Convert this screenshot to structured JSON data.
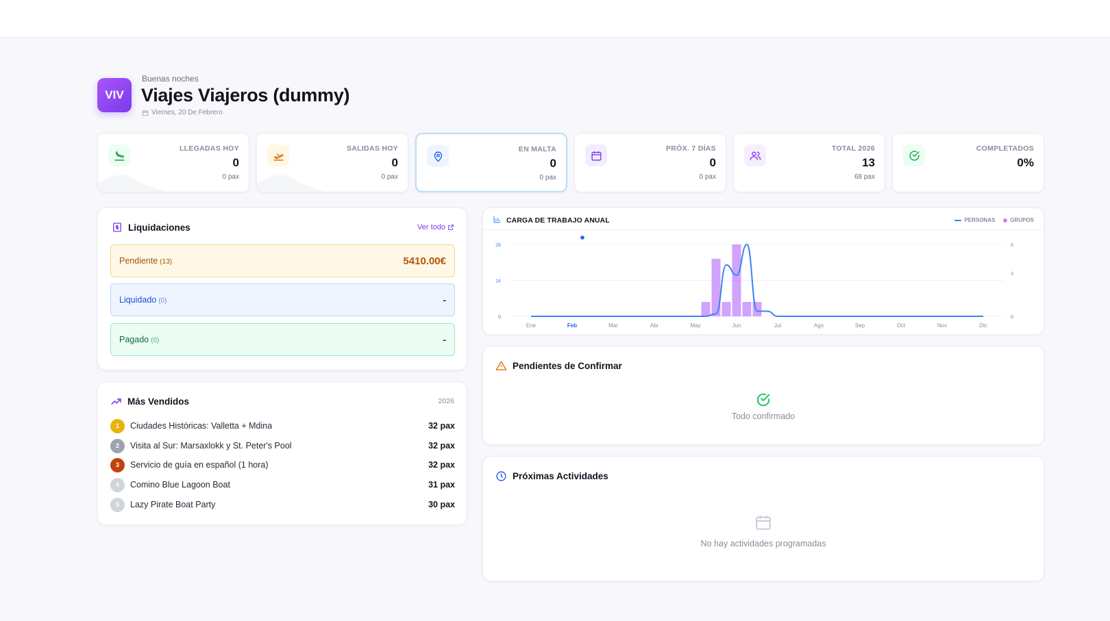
{
  "header": {
    "greeting": "Buenas noches",
    "company": "Viajes Viajeros (dummy)",
    "logo_initials": "VIV",
    "date": "Viernes, 20 De Febrero"
  },
  "stats": [
    {
      "label": "LLEGADAS HOY",
      "value": "0",
      "sub": "0 pax",
      "icon": "plane-landing-icon",
      "color": "#16a34a"
    },
    {
      "label": "SALIDAS HOY",
      "value": "0",
      "sub": "0 pax",
      "icon": "plane-takeoff-icon",
      "color": "#d97706"
    },
    {
      "label": "EN MALTA",
      "value": "0",
      "sub": "0 pax",
      "icon": "map-pin-icon",
      "color": "#2563eb"
    },
    {
      "label": "PRÓX. 7 DÍAS",
      "value": "0",
      "sub": "0 pax",
      "icon": "calendar-icon",
      "color": "#7c3aed"
    },
    {
      "label": "TOTAL 2026",
      "value": "13",
      "sub": "68 pax",
      "icon": "users-icon",
      "color": "#9333ea"
    },
    {
      "label": "COMPLETADOS",
      "value": "0%",
      "sub": "",
      "icon": "check-circle-icon",
      "color": "#16a34a"
    }
  ],
  "liquidaciones": {
    "title": "Liquidaciones",
    "ver_todo": "Ver todo",
    "rows": [
      {
        "name": "Pendiente",
        "count": "(13)",
        "amount": "5410.00€"
      },
      {
        "name": "Liquidado",
        "count": "(0)",
        "amount": "-"
      },
      {
        "name": "Pagado",
        "count": "(0)",
        "amount": "-"
      }
    ]
  },
  "mas_vendidos": {
    "title": "Más Vendidos",
    "year": "2026",
    "items": [
      {
        "rank": "1",
        "name": "Ciudades Históricas: Valletta + Mdina",
        "pax": "32 pax",
        "color": "#eab308"
      },
      {
        "rank": "2",
        "name": "Visita al Sur: Marsaxlokk y St. Peter's Pool",
        "pax": "32 pax",
        "color": "#9ca3af"
      },
      {
        "rank": "3",
        "name": "Servicio de guía en español (1 hora)",
        "pax": "32 pax",
        "color": "#c2410c"
      },
      {
        "rank": "4",
        "name": "Comino Blue Lagoon Boat",
        "pax": "31 pax",
        "color": "#d1d5db"
      },
      {
        "rank": "5",
        "name": "Lazy Pirate Boat Party",
        "pax": "30 pax",
        "color": "#d1d5db"
      }
    ]
  },
  "chart_data": {
    "type": "line",
    "title": "CARGA DE TRABAJO ANUAL",
    "categories": [
      "Ene",
      "Feb",
      "Mar",
      "Abr",
      "May",
      "Jun",
      "Jul",
      "Ago",
      "Sep",
      "Oct",
      "Nov",
      "Dic"
    ],
    "current_month": "Feb",
    "series": [
      {
        "name": "PERSONAS",
        "kind": "line",
        "axis": "left",
        "color": "#3b82f6",
        "x": [
          1,
          1.5,
          2,
          2.5,
          3,
          3.5,
          4,
          4.25,
          4.5,
          4.75,
          5,
          5.25,
          5.5,
          5.75,
          6,
          6.25,
          6.5,
          6.75,
          7,
          7.5,
          8,
          8.5,
          9,
          9.5,
          10,
          10.5,
          11,
          11.5,
          12
        ],
        "values": [
          0,
          0,
          0,
          0,
          0,
          0,
          0,
          0,
          0,
          0,
          0,
          0,
          1,
          20,
          16,
          28,
          2,
          2,
          0,
          0,
          0,
          0,
          0,
          0,
          0,
          0,
          0,
          0,
          0
        ]
      },
      {
        "name": "GRUPOS",
        "kind": "bar",
        "axis": "right",
        "color": "#c084fc",
        "x": [
          5.25,
          5.5,
          5.75,
          6,
          6.25,
          6.5
        ],
        "values": [
          1,
          4,
          1,
          5,
          1,
          1
        ]
      }
    ],
    "y_left": {
      "ticks": [
        0,
        14,
        28
      ],
      "ylim": [
        0,
        28
      ]
    },
    "y_right": {
      "ticks": [
        0,
        3,
        5
      ],
      "ylim": [
        0,
        5
      ]
    },
    "legend": "top-right",
    "grid": true
  },
  "pendientes": {
    "title": "Pendientes de Confirmar",
    "empty": "Todo confirmado"
  },
  "proximas": {
    "title": "Próximas Actividades",
    "empty": "No hay actividades programadas"
  }
}
